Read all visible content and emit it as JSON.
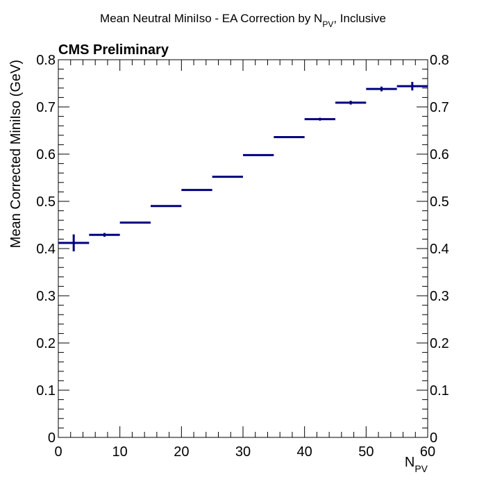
{
  "chart_data": {
    "type": "scatter",
    "title": {
      "main": "Mean Neutral MiniIso - EA Correction by N",
      "sub": "PV",
      "suffix": ", Inclusive"
    },
    "label": "CMS Preliminary",
    "xlabel": {
      "main": "N",
      "sub": "PV"
    },
    "ylabel": "Mean Corrected MiniIso (GeV)",
    "xlim": [
      0,
      60
    ],
    "ylim": [
      0,
      0.8
    ],
    "x_ticks": [
      "0",
      "10",
      "20",
      "30",
      "40",
      "50",
      "60"
    ],
    "y_ticks": [
      "0",
      "0.1",
      "0.2",
      "0.3",
      "0.4",
      "0.5",
      "0.6",
      "0.7",
      "0.8"
    ],
    "grid": false,
    "marker_color": "#000080",
    "series": [
      {
        "points": [
          {
            "x": 2.5,
            "xerr": 2.5,
            "y": 0.412,
            "yerr": 0.018
          },
          {
            "x": 7.5,
            "xerr": 2.5,
            "y": 0.429,
            "yerr": 0.004
          },
          {
            "x": 12.5,
            "xerr": 2.5,
            "y": 0.455,
            "yerr": 0.001
          },
          {
            "x": 17.5,
            "xerr": 2.5,
            "y": 0.49,
            "yerr": 0.001
          },
          {
            "x": 22.5,
            "xerr": 2.5,
            "y": 0.524,
            "yerr": 0.001
          },
          {
            "x": 27.5,
            "xerr": 2.5,
            "y": 0.552,
            "yerr": 0.001
          },
          {
            "x": 32.5,
            "xerr": 2.5,
            "y": 0.598,
            "yerr": 0.002
          },
          {
            "x": 37.5,
            "xerr": 2.5,
            "y": 0.636,
            "yerr": 0.002
          },
          {
            "x": 42.5,
            "xerr": 2.5,
            "y": 0.674,
            "yerr": 0.003
          },
          {
            "x": 47.5,
            "xerr": 2.5,
            "y": 0.709,
            "yerr": 0.004
          },
          {
            "x": 52.5,
            "xerr": 2.5,
            "y": 0.738,
            "yerr": 0.005
          },
          {
            "x": 57.5,
            "xerr": 2.5,
            "y": 0.744,
            "yerr": 0.009
          }
        ]
      }
    ]
  }
}
